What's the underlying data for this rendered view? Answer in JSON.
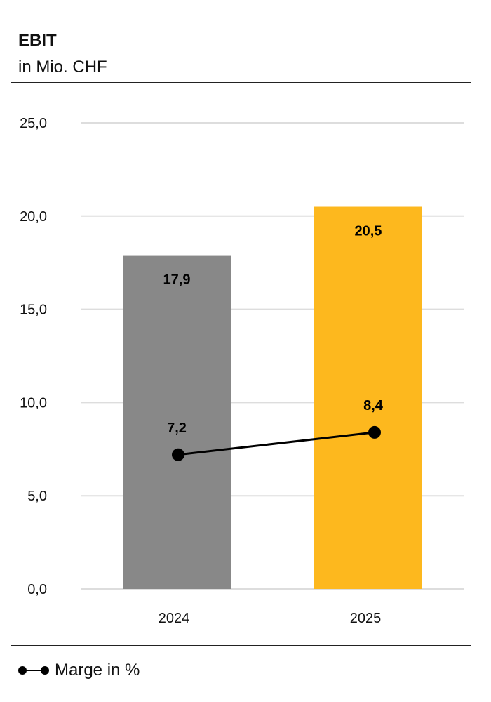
{
  "chart_data": {
    "type": "bar",
    "title": "EBIT",
    "subtitle": "in Mio. CHF",
    "categories": [
      "2024",
      "2025"
    ],
    "ylim": [
      0,
      25
    ],
    "yticks": [
      "0,0",
      "5,0",
      "10,0",
      "15,0",
      "20,0",
      "25,0"
    ],
    "grid": true,
    "legend_position": "bottom-left",
    "series": [
      {
        "kind": "bar",
        "values": [
          17.9,
          20.5
        ],
        "labels": [
          "17,9",
          "20,5"
        ],
        "colors": [
          "#888888",
          "#fdb81e"
        ]
      },
      {
        "kind": "line",
        "name": "Marge in %",
        "values": [
          7.2,
          8.4
        ],
        "labels": [
          "7,2",
          "8,4"
        ],
        "color": "#000000"
      }
    ]
  }
}
